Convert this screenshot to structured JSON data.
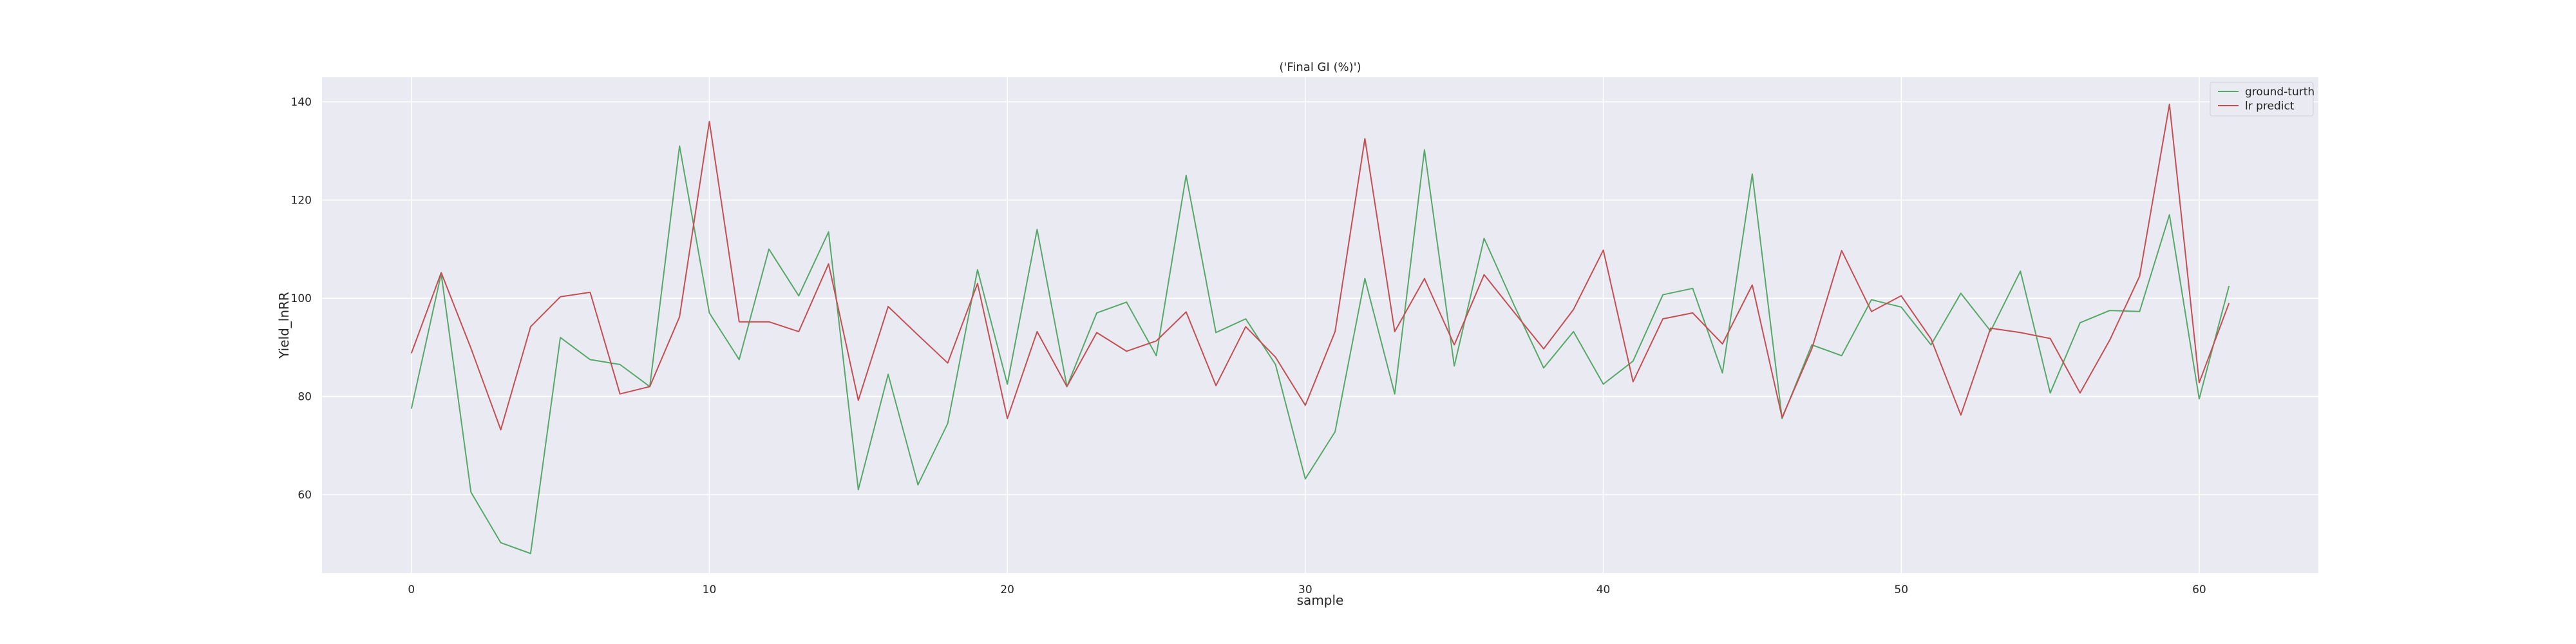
{
  "chart_data": {
    "type": "line",
    "title": "('Final GI (%)')",
    "xlabel": "sample",
    "ylabel": "Yield_lnRR",
    "xlim": [
      -3,
      64
    ],
    "ylim": [
      44,
      145
    ],
    "xticks": [
      0,
      10,
      20,
      30,
      40,
      50,
      60
    ],
    "yticks": [
      60,
      80,
      100,
      120,
      140
    ],
    "grid": true,
    "legend_position": "top-right",
    "x": [
      0,
      1,
      2,
      3,
      4,
      5,
      6,
      7,
      8,
      9,
      10,
      11,
      12,
      13,
      14,
      15,
      16,
      17,
      18,
      19,
      20,
      21,
      22,
      23,
      24,
      25,
      26,
      27,
      28,
      29,
      30,
      31,
      32,
      33,
      34,
      35,
      36,
      37,
      38,
      39,
      40,
      41,
      42,
      43,
      44,
      45,
      46,
      47,
      48,
      49,
      50,
      51,
      52,
      53,
      54,
      55,
      56,
      57,
      58,
      59,
      60,
      61
    ],
    "series": [
      {
        "name": "ground-turth",
        "color": "#55a868",
        "values": [
          77.5,
          105,
          60.5,
          50.2,
          48,
          92,
          87.5,
          86.5,
          82,
          131,
          97,
          87.5,
          110,
          100.5,
          113.5,
          61,
          84.5,
          62,
          74.5,
          105.8,
          82.5,
          114,
          82,
          97,
          99.2,
          88.3,
          125,
          93,
          95.8,
          86.5,
          63.2,
          72.8,
          104,
          80.5,
          130.2,
          86.2,
          112.2,
          98.7,
          85.8,
          93.2,
          82.5,
          87.2,
          100.7,
          102,
          84.8,
          125.3,
          75.5,
          90.5,
          88.3,
          99.7,
          98.2,
          90.5,
          101,
          93.3,
          105.5,
          80.7,
          95,
          97.5,
          97.3,
          117,
          79.5,
          102.5
        ]
      },
      {
        "name": "lr predict",
        "color": "#c44e52",
        "values": [
          88.8,
          105.2,
          89.8,
          73.2,
          94.2,
          100.3,
          101.2,
          80.5,
          82,
          96.2,
          136,
          95.2,
          95.2,
          93.2,
          107,
          79.2,
          98.3,
          92.5,
          86.8,
          103,
          75.5,
          93.2,
          82,
          93,
          89.2,
          91.3,
          97.2,
          82.2,
          94.2,
          88,
          78.2,
          93.2,
          132.5,
          93.2,
          104,
          90.5,
          104.8,
          97.2,
          89.7,
          97.7,
          109.8,
          83,
          95.8,
          97,
          90.7,
          102.7,
          75.7,
          89.7,
          109.7,
          97.3,
          100.5,
          91.7,
          76.2,
          93.9,
          93,
          91.8,
          80.7,
          91.5,
          104.5,
          139.5,
          82.8,
          99
        ]
      }
    ]
  }
}
